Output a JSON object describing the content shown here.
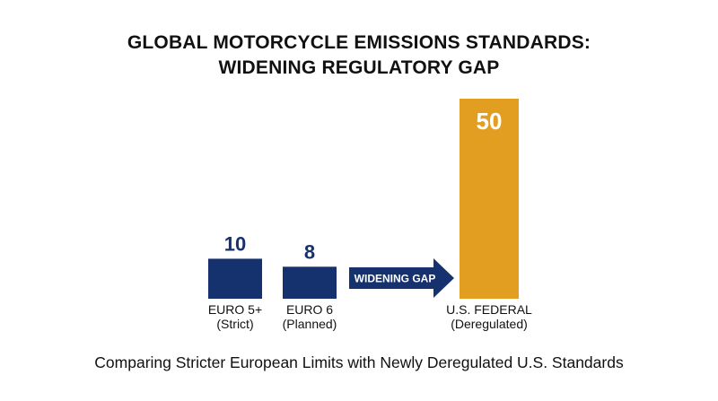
{
  "chart_data": {
    "type": "bar",
    "title_lines": [
      "GLOBAL MOTORCYCLE EMISSIONS STANDARDS:",
      "WIDENING REGULATORY GAP"
    ],
    "subtitle": "Comparing Stricter European Limits with Newly Deregulated U.S. Standards",
    "categories": [
      {
        "name": "EURO 5+",
        "note": "(Strict)"
      },
      {
        "name": "EURO 6",
        "note": "(Planned)"
      },
      {
        "name": "U.S. FEDERAL",
        "note": "(Deregulated)"
      }
    ],
    "values": [
      10,
      8,
      50
    ],
    "data_labels": [
      "10",
      "8",
      "50"
    ],
    "colors": [
      "#16326e",
      "#16326e",
      "#e29e20"
    ],
    "label_colors": [
      "#16326e",
      "#16326e",
      "#ffffff"
    ],
    "annotation": {
      "text": "WIDENING GAP",
      "color": "#16326e"
    },
    "ylim": [
      0,
      50
    ],
    "grid": false,
    "legend": "none"
  }
}
